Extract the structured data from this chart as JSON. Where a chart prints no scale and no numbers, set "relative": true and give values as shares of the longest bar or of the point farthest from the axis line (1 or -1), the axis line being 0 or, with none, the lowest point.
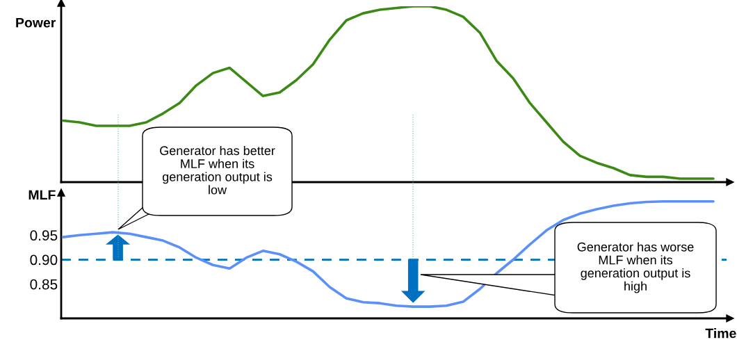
{
  "chart_data": [
    {
      "type": "line",
      "ylabel": "Power",
      "relative": true,
      "tick_labels": false,
      "categories": [
        null,
        null,
        null,
        null,
        null,
        null,
        null,
        null,
        null,
        null,
        null,
        null,
        null,
        null,
        null,
        null,
        null,
        null,
        null,
        null,
        null,
        null,
        null,
        null,
        null,
        null,
        null,
        null,
        null,
        null,
        null,
        null,
        null,
        null,
        null,
        null,
        null,
        null,
        null,
        null
      ],
      "series": [
        {
          "color": "#3a8a14",
          "values": [
            0.35,
            0.34,
            0.32,
            0.32,
            0.32,
            0.34,
            0.39,
            0.45,
            0.55,
            0.62,
            0.65,
            0.57,
            0.49,
            0.51,
            0.58,
            0.67,
            0.81,
            0.92,
            0.96,
            0.98,
            0.99,
            1.0,
            1.0,
            0.98,
            0.94,
            0.85,
            0.69,
            0.59,
            0.45,
            0.34,
            0.23,
            0.15,
            0.11,
            0.08,
            0.04,
            0.03,
            0.03,
            0.02,
            0.02,
            0.02
          ]
        }
      ]
    },
    {
      "type": "line",
      "ylabel": "MLF",
      "xlabel": "Time",
      "tick_labels": "y",
      "ylim": [
        0.78,
        1.03
      ],
      "yticks": [
        {
          "value": 0.85,
          "label": "0.85"
        },
        {
          "value": 0.9,
          "label": "0.90"
        },
        {
          "value": 0.95,
          "label": "0.95"
        }
      ],
      "categories": [
        null,
        null,
        null,
        null,
        null,
        null,
        null,
        null,
        null,
        null,
        null,
        null,
        null,
        null,
        null,
        null,
        null,
        null,
        null,
        null,
        null,
        null,
        null,
        null,
        null,
        null,
        null,
        null,
        null,
        null,
        null,
        null,
        null,
        null,
        null,
        null,
        null,
        null,
        null,
        null
      ],
      "series": [
        {
          "color": "#5b8ff9",
          "values": [
            0.946,
            0.95,
            0.953,
            0.956,
            0.953,
            0.946,
            0.939,
            0.925,
            0.904,
            0.889,
            0.882,
            0.904,
            0.918,
            0.911,
            0.896,
            0.876,
            0.844,
            0.821,
            0.813,
            0.811,
            0.806,
            0.804,
            0.804,
            0.806,
            0.814,
            0.84,
            0.872,
            0.9,
            0.931,
            0.96,
            0.981,
            0.994,
            1.003,
            1.01,
            1.015,
            1.018,
            1.019,
            1.019,
            1.019,
            1.019
          ]
        }
      ],
      "ref_lines": [
        {
          "axis": "y",
          "value": 0.9,
          "color": "#0070c0",
          "line_style": "dashed"
        }
      ],
      "annotations": [
        "Generator has better MLF when its generation output is low",
        "Generator has worse MLF when its generation output is high"
      ]
    }
  ]
}
